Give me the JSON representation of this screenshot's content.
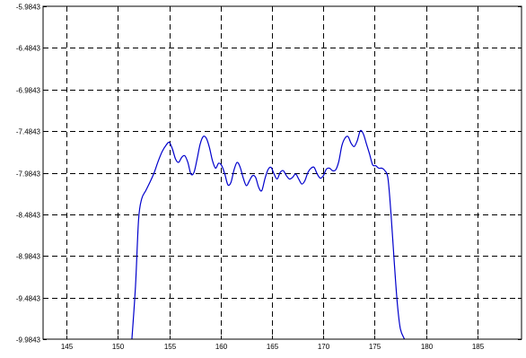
{
  "chart_data": {
    "type": "line",
    "title": "",
    "xlabel": "",
    "ylabel": "",
    "xlim": [
      142.7,
      189.3
    ],
    "ylim": [
      -9.9843,
      -5.9843
    ],
    "grid": true,
    "grid_style": "dashed",
    "line_color": "#0000cc",
    "x_ticks": [
      145,
      150,
      155,
      160,
      165,
      170,
      175,
      180,
      185
    ],
    "y_ticks": [
      -5.9843,
      -6.4843,
      -6.9843,
      -7.4843,
      -7.9843,
      -8.4843,
      -8.9843,
      -9.4843,
      -9.9843
    ],
    "x_tick_labels": [
      "145",
      "150",
      "155",
      "160",
      "165",
      "170",
      "175",
      "180",
      "185"
    ],
    "y_tick_labels": [
      "-5.9843",
      "-6.4843",
      "-6.9843",
      "-7.4843",
      "-7.9843",
      "-8.4843",
      "-8.9843",
      "-9.4843",
      "-9.9843"
    ],
    "series": [
      {
        "x": [
          151.35,
          151.7,
          152.0,
          152.3,
          152.7,
          153.1,
          153.5,
          153.9,
          154.3,
          154.7,
          155.0,
          155.3,
          155.6,
          155.9,
          156.2,
          156.5,
          156.8,
          157.1,
          157.4,
          157.7,
          158.0,
          158.3,
          158.6,
          158.9,
          159.2,
          159.5,
          159.8,
          160.1,
          160.4,
          160.7,
          161.0,
          161.3,
          161.6,
          161.9,
          162.2,
          162.5,
          162.8,
          163.1,
          163.4,
          163.7,
          164.0,
          164.3,
          164.6,
          164.9,
          165.2,
          165.5,
          165.8,
          166.1,
          166.4,
          166.7,
          167.0,
          167.3,
          167.6,
          167.9,
          168.2,
          168.5,
          168.8,
          169.1,
          169.4,
          169.7,
          170.0,
          170.3,
          170.6,
          170.9,
          171.2,
          171.5,
          171.8,
          172.1,
          172.4,
          172.7,
          173.0,
          173.3,
          173.6,
          173.9,
          174.2,
          174.5,
          174.8,
          175.1,
          175.4,
          175.7,
          176.0,
          176.3,
          176.6,
          176.9,
          177.2,
          177.5,
          177.9
        ],
        "y": [
          -9.9843,
          -9.35,
          -8.55,
          -8.3,
          -8.2,
          -8.1,
          -7.99,
          -7.85,
          -7.73,
          -7.65,
          -7.62,
          -7.7,
          -7.82,
          -7.86,
          -7.8,
          -7.78,
          -7.86,
          -8.0,
          -7.98,
          -7.82,
          -7.64,
          -7.55,
          -7.57,
          -7.68,
          -7.84,
          -7.93,
          -7.87,
          -7.9,
          -8.0,
          -8.13,
          -8.1,
          -7.95,
          -7.86,
          -7.92,
          -8.05,
          -8.14,
          -8.08,
          -8.02,
          -8.04,
          -8.16,
          -8.2,
          -8.06,
          -7.95,
          -7.92,
          -8.0,
          -8.06,
          -7.98,
          -7.96,
          -8.02,
          -8.06,
          -8.04,
          -8.0,
          -8.06,
          -8.12,
          -8.08,
          -7.98,
          -7.93,
          -7.92,
          -8.0,
          -8.05,
          -8.02,
          -7.94,
          -7.93,
          -7.96,
          -7.95,
          -7.85,
          -7.66,
          -7.57,
          -7.55,
          -7.63,
          -7.67,
          -7.6,
          -7.48,
          -7.52,
          -7.64,
          -7.76,
          -7.89,
          -7.9,
          -7.93,
          -7.93,
          -7.96,
          -8.06,
          -8.5,
          -9.05,
          -9.55,
          -9.86,
          -9.9843
        ]
      }
    ]
  }
}
